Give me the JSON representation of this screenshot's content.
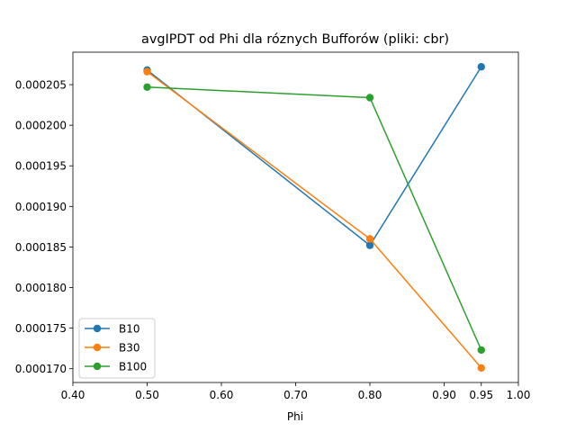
{
  "chart_data": {
    "type": "line",
    "title": "avgIPDT od Phi dla róznych Bufforów (pliki: cbr)",
    "xlabel": "Phi",
    "ylabel": "",
    "xlim": [
      0.4,
      1.0
    ],
    "ylim": [
      0.0001683,
      0.000209
    ],
    "xticks": [
      0.4,
      0.5,
      0.6,
      0.7,
      0.8,
      0.9,
      0.95,
      1.0
    ],
    "xtick_labels": [
      "0.40",
      "0.50",
      "0.60",
      "0.70",
      "0.80",
      "0.90",
      "0.95",
      "1.00"
    ],
    "yticks": [
      0.00017,
      0.000175,
      0.00018,
      0.000185,
      0.00019,
      0.000195,
      0.0002,
      0.000205
    ],
    "ytick_labels": [
      "0.000170",
      "0.000175",
      "0.000180",
      "0.000185",
      "0.000190",
      "0.000195",
      "0.000200",
      "0.000205"
    ],
    "x": [
      0.5,
      0.8,
      0.95
    ],
    "legend_position": "lower-left",
    "grid": false,
    "series": [
      {
        "name": "B10",
        "color": "#1f77b4",
        "values": [
          0.0002068,
          0.0001852,
          0.0002072
        ]
      },
      {
        "name": "B30",
        "color": "#ff7f0e",
        "values": [
          0.0002066,
          0.000186,
          0.0001701
        ]
      },
      {
        "name": "B100",
        "color": "#2ca02c",
        "values": [
          0.0002047,
          0.0002034,
          0.0001723
        ]
      }
    ]
  }
}
